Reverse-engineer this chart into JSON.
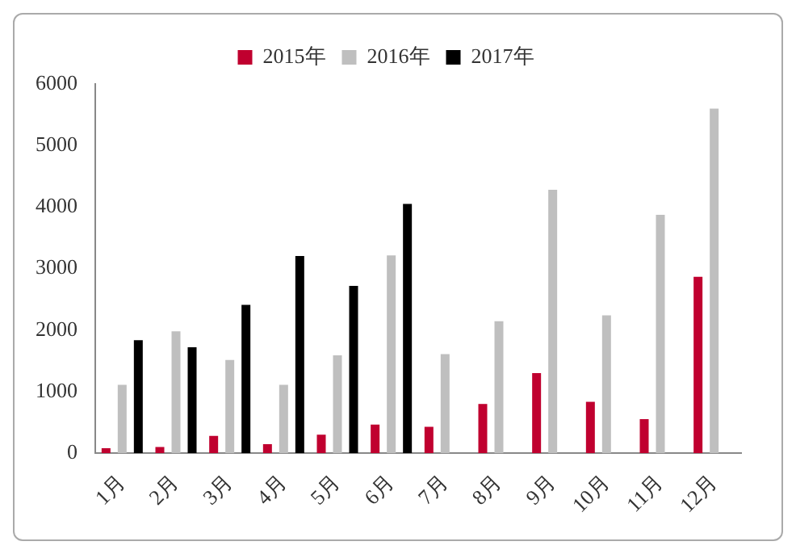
{
  "chart_data": {
    "type": "bar",
    "categories": [
      "1月",
      "2月",
      "3月",
      "4月",
      "5月",
      "6月",
      "7月",
      "8月",
      "9月",
      "10月",
      "11月",
      "12月"
    ],
    "series": [
      {
        "name": "2015年",
        "color": "#c0002f",
        "values": [
          80,
          100,
          280,
          145,
          300,
          465,
          430,
          800,
          1300,
          835,
          555,
          2865
        ]
      },
      {
        "name": "2016年",
        "color": "#bfbfbf",
        "values": [
          1110,
          1980,
          1515,
          1110,
          1590,
          3215,
          1610,
          2145,
          4280,
          2240,
          3875,
          5600
        ]
      },
      {
        "name": "2017年",
        "color": "#000000",
        "values": [
          1835,
          1720,
          2410,
          3205,
          2720,
          4050,
          null,
          null,
          null,
          null,
          null,
          null
        ]
      }
    ],
    "ylim": [
      0,
      6000
    ],
    "yticks": [
      0,
      1000,
      2000,
      3000,
      4000,
      5000,
      6000
    ],
    "grid": false,
    "legend": "top"
  }
}
